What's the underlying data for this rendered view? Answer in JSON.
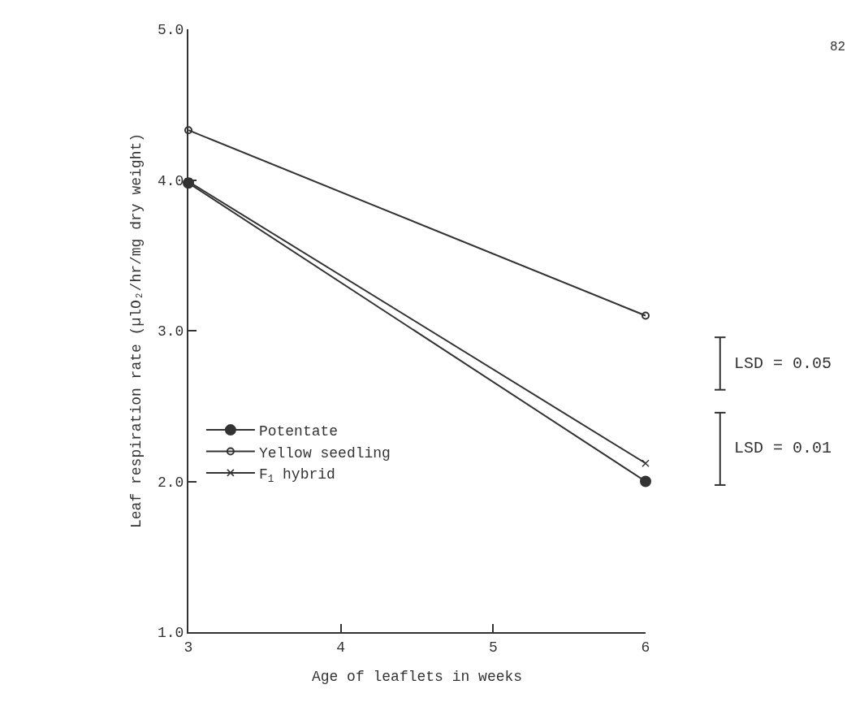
{
  "chart_data": {
    "type": "line",
    "xlabel": "Age of leaflets in weeks",
    "ylabel": "Leaf respiration rate (µlO₂/hr/mg dry weight)",
    "x": [
      3,
      6
    ],
    "series": [
      {
        "name": "Potentate",
        "color": "#333333",
        "values": [
          3.98,
          2.0
        ],
        "marker": "circle"
      },
      {
        "name": "Yellow seedling",
        "color": "#333333",
        "values": [
          4.33,
          3.1
        ],
        "marker": "circle-open"
      },
      {
        "name": "F$_{1}$ hybrid",
        "color": "#333333",
        "values": [
          3.99,
          2.12
        ],
        "marker": "cross"
      }
    ],
    "xlim": [
      3,
      6
    ],
    "xticks": [
      3,
      4,
      5,
      6
    ],
    "ylim": [
      1,
      5
    ],
    "yticks": [
      {
        "value": 1,
        "label": "1.0"
      },
      {
        "value": 2,
        "label": "2.0"
      },
      {
        "value": 3,
        "label": "3.0"
      },
      {
        "value": 4,
        "label": "4.0"
      },
      {
        "value": 5,
        "label": "5.0"
      }
    ],
    "grid": false,
    "legend": "left",
    "line_style": "solid",
    "annotations": [
      "LSD = 0.05",
      "LSD = 0.01",
      "82"
    ]
  }
}
